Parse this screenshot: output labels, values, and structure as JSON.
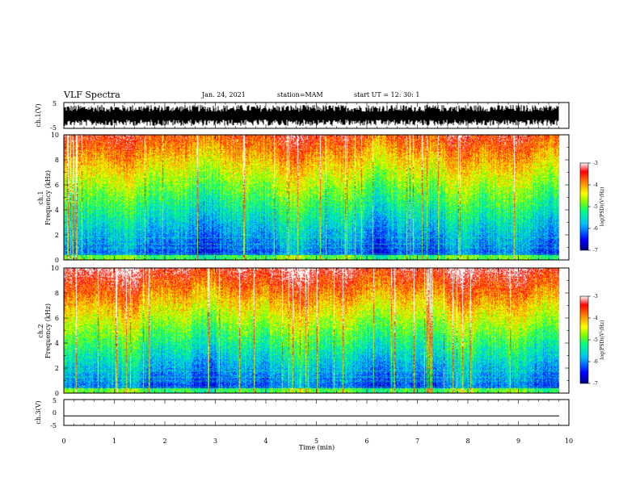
{
  "header": {
    "title": "VLF Spectra",
    "date": "Jan. 24, 2021",
    "station": "station=MAM",
    "start_ut": "start UT =  12: 30: 1"
  },
  "chart_data": [
    {
      "type": "line",
      "panel": "ch1-waveform",
      "ylabel": "ch.1(V)",
      "ylim": [
        -5,
        5
      ],
      "yticks": [
        "5",
        "-5"
      ],
      "xlim": [
        0,
        10
      ],
      "description_values": "dense burst waveform spanning roughly -5 to 5 V"
    },
    {
      "type": "heatmap",
      "panel": "ch1-spectrogram",
      "ylabel": "ch.1 Frequency (kHz)",
      "ylim": [
        0,
        10
      ],
      "yticks": [
        "0",
        "2",
        "4",
        "6",
        "8",
        "10"
      ],
      "xlim": [
        0,
        10
      ],
      "colorbar": {
        "label": "log(PSD)(V²/Hz)",
        "range": [
          -7,
          -3
        ],
        "ticks": [
          "-3",
          "-4",
          "-5",
          "-6",
          "-7"
        ]
      }
    },
    {
      "type": "heatmap",
      "panel": "ch2-spectrogram",
      "ylabel": "ch.2 Frequency (kHz)",
      "ylim": [
        0,
        10
      ],
      "yticks": [
        "0",
        "2",
        "4",
        "6",
        "8",
        "10"
      ],
      "xlim": [
        0,
        10
      ],
      "colorbar": {
        "label": "log(PSD)(V²/Hz)",
        "range": [
          -7,
          -3
        ],
        "ticks": [
          "-3",
          "-4",
          "-5",
          "-6",
          "-7"
        ]
      }
    },
    {
      "type": "line",
      "panel": "ch3-waveform",
      "ylabel": "ch.3(V)",
      "ylim": [
        -5,
        5
      ],
      "yticks": [
        "5",
        "0",
        "-5"
      ],
      "xlim": [
        0,
        10
      ],
      "values": [
        -1.5,
        -1.5
      ]
    }
  ],
  "xaxis": {
    "label": "Time (min)",
    "ticks": [
      "0",
      "1",
      "2",
      "3",
      "4",
      "5",
      "6",
      "7",
      "8",
      "9",
      "10"
    ]
  },
  "colors": {
    "cmap": [
      "#000080",
      "#0000ff",
      "#00c0ff",
      "#00ff80",
      "#80ff00",
      "#ffff00",
      "#ff8000",
      "#ff0000",
      "#ffffff"
    ]
  }
}
